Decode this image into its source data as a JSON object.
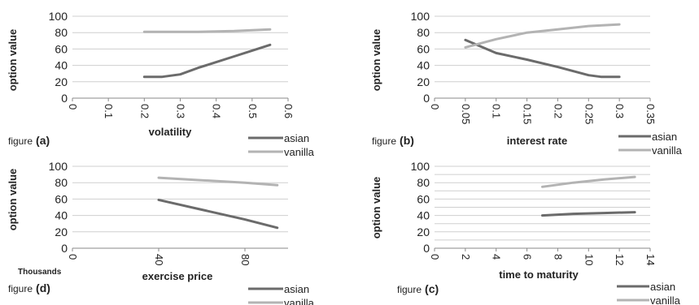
{
  "chart_data": [
    {
      "id": "a",
      "type": "line",
      "figure_caption": {
        "prefix": "figure",
        "letter": "(a)"
      },
      "xlabel": "volatility",
      "ylabel": "option value",
      "xlim": [
        0,
        0.6
      ],
      "ylim": [
        0,
        100
      ],
      "x_ticks": [
        "0",
        "0.1",
        "0.2",
        "0.3",
        "0.4",
        "0.5",
        "0.6"
      ],
      "y_ticks": [
        "0",
        "20",
        "40",
        "60",
        "80",
        "100"
      ],
      "x_tick_values": [
        0,
        0.1,
        0.2,
        0.3,
        0.4,
        0.5,
        0.6
      ],
      "x_tick_rotation": 90,
      "series": [
        {
          "name": "asian",
          "color": "#6b6b6b",
          "x": [
            0.2,
            0.25,
            0.3,
            0.35,
            0.4,
            0.45,
            0.5,
            0.55
          ],
          "y": [
            26,
            26,
            29,
            37,
            44,
            51,
            58,
            65
          ]
        },
        {
          "name": "vanilla",
          "color": "#b3b3b3",
          "x": [
            0.2,
            0.25,
            0.3,
            0.35,
            0.4,
            0.45,
            0.5,
            0.55
          ],
          "y": [
            81,
            81,
            81,
            81,
            81.5,
            82,
            83,
            84
          ]
        }
      ]
    },
    {
      "id": "b",
      "type": "line",
      "figure_caption": {
        "prefix": "figure",
        "letter": "(b)"
      },
      "xlabel": "interest rate",
      "ylabel": "option value",
      "xlim": [
        0,
        0.35
      ],
      "ylim": [
        0,
        100
      ],
      "x_ticks": [
        "0",
        "0.05",
        "0.1",
        "0.15",
        "0.2",
        "0.25",
        "0.3",
        "0.35"
      ],
      "y_ticks": [
        "0",
        "20",
        "40",
        "60",
        "80",
        "100"
      ],
      "x_tick_values": [
        0,
        0.05,
        0.1,
        0.15,
        0.2,
        0.25,
        0.3,
        0.35
      ],
      "x_tick_rotation": 90,
      "series": [
        {
          "name": "asian",
          "color": "#6b6b6b",
          "x": [
            0.05,
            0.1,
            0.15,
            0.2,
            0.25,
            0.27,
            0.3
          ],
          "y": [
            71,
            55,
            47,
            38,
            28,
            26,
            26
          ]
        },
        {
          "name": "vanilla",
          "color": "#b3b3b3",
          "x": [
            0.05,
            0.1,
            0.15,
            0.2,
            0.25,
            0.3
          ],
          "y": [
            62,
            72,
            80,
            84,
            88,
            90
          ]
        }
      ]
    },
    {
      "id": "d",
      "type": "line",
      "figure_caption": {
        "prefix": "figure",
        "letter": "(d)"
      },
      "xlabel": "exercise price",
      "ylabel": "option value",
      "x_unit_note": "Thousands",
      "xlim": [
        0,
        100
      ],
      "ylim": [
        0,
        100
      ],
      "x_ticks": [
        "0",
        "40",
        "80"
      ],
      "y_ticks": [
        "0",
        "20",
        "40",
        "60",
        "80",
        "100"
      ],
      "x_tick_values": [
        0,
        40,
        80
      ],
      "x_tick_rotation": 90,
      "series": [
        {
          "name": "asian",
          "color": "#6b6b6b",
          "x": [
            40,
            60,
            80,
            95
          ],
          "y": [
            59,
            47,
            35,
            25
          ]
        },
        {
          "name": "vanilla",
          "color": "#b3b3b3",
          "x": [
            40,
            60,
            80,
            95
          ],
          "y": [
            86,
            83,
            80,
            77
          ]
        }
      ]
    },
    {
      "id": "c",
      "type": "line",
      "figure_caption": {
        "prefix": "figure",
        "letter": "(c)"
      },
      "xlabel": "time to maturity",
      "ylabel": "option value",
      "xlim": [
        0,
        14
      ],
      "ylim": [
        0,
        100
      ],
      "x_ticks": [
        "0",
        "2",
        "4",
        "6",
        "8",
        "10",
        "12",
        "14"
      ],
      "y_ticks": [
        "0",
        "10",
        "20",
        "30",
        "40",
        "50",
        "60",
        "70",
        "80",
        "90",
        "100"
      ],
      "y_tick_labels_shown": [
        "0",
        "20",
        "40",
        "60",
        "80",
        "100"
      ],
      "x_tick_values": [
        0,
        2,
        4,
        6,
        8,
        10,
        12,
        14
      ],
      "x_tick_rotation": 90,
      "series": [
        {
          "name": "asian",
          "color": "#6b6b6b",
          "x": [
            7,
            9,
            11,
            13
          ],
          "y": [
            40,
            42,
            43,
            44
          ]
        },
        {
          "name": "vanilla",
          "color": "#b3b3b3",
          "x": [
            7,
            9,
            11,
            13
          ],
          "y": [
            75,
            80,
            84,
            87
          ]
        }
      ]
    }
  ]
}
